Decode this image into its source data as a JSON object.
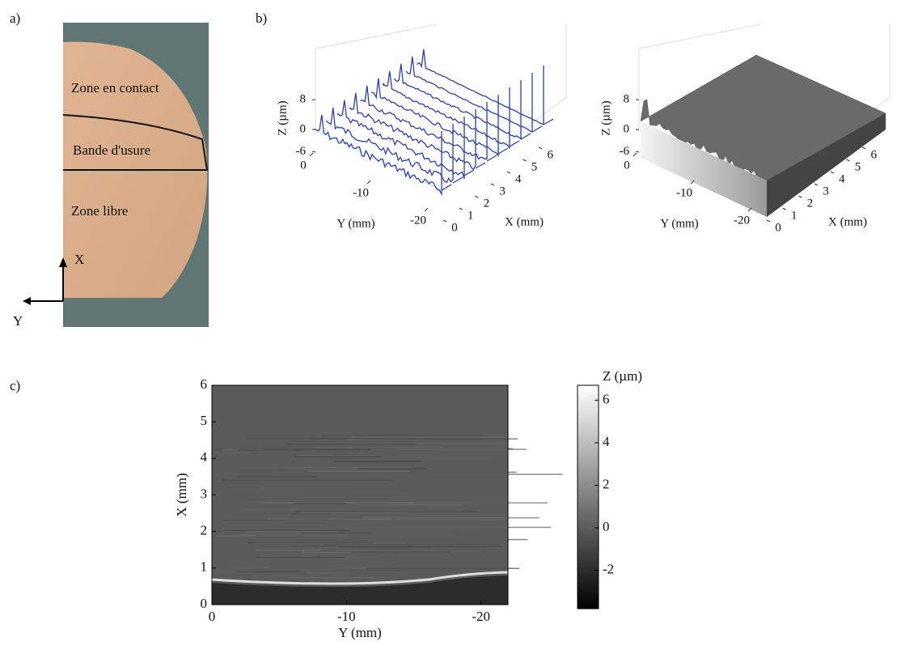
{
  "panel_a": {
    "label": "a)",
    "zones": [
      "Zone en contact",
      "Bande d'usure",
      "Zone libre"
    ],
    "axis_x": "X",
    "axis_y": "Y"
  },
  "panel_b": {
    "label": "b)",
    "plots": [
      {
        "zlabel": "Z (µm)",
        "zticks": [
          8,
          0,
          -6
        ],
        "ylabel": "Y (mm)",
        "yticks": [
          0,
          -10,
          -20
        ],
        "xlabel": "X (mm)",
        "xticks": [
          0,
          1,
          2,
          3,
          4,
          5,
          6
        ]
      },
      {
        "zlabel": "Z (µm)",
        "zticks": [
          8,
          0,
          -6
        ],
        "ylabel": "Y (mm)",
        "yticks": [
          0,
          -10,
          -20
        ],
        "xlabel": "X (mm)",
        "xticks": [
          0,
          1,
          2,
          3,
          4,
          5,
          6
        ]
      }
    ]
  },
  "panel_c": {
    "label": "c)",
    "xlabel": "Y (mm)",
    "ylabel": "X (mm)",
    "xlim": [
      0,
      -22
    ],
    "ylim": [
      0,
      6
    ],
    "xticks": [
      0,
      -10,
      -20
    ],
    "yticks": [
      0,
      1,
      2,
      3,
      4,
      5,
      6
    ],
    "colorbar": {
      "title": "Z (µm)",
      "lim": [
        -3.8,
        6.7
      ],
      "ticks": [
        6,
        4,
        2,
        0,
        -2
      ]
    }
  }
}
